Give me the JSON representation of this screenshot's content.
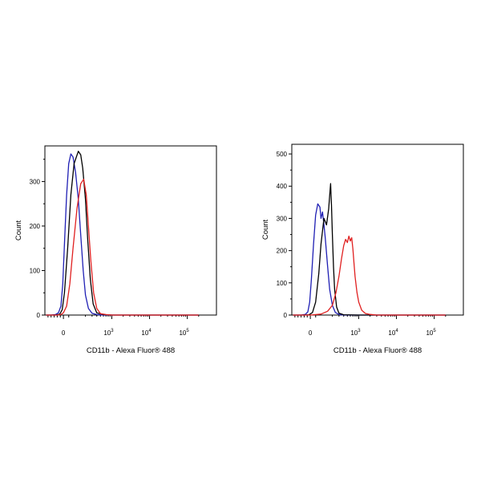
{
  "chart_data": [
    {
      "type": "line",
      "title": "",
      "xlabel": "CD11b - Alexa Fluor® 488",
      "ylabel": "Count",
      "x_scale": "biexponential",
      "xlim": [
        -300,
        200000
      ],
      "ylim": [
        0,
        380
      ],
      "x_tick_labels": [
        {
          "value": 0,
          "label": "0",
          "sup": ""
        },
        {
          "value": 1000,
          "label": "10",
          "sup": "3"
        },
        {
          "value": 10000,
          "label": "10",
          "sup": "4"
        },
        {
          "value": 100000,
          "label": "10",
          "sup": "5"
        }
      ],
      "y_ticks": [
        0,
        100,
        200,
        300
      ],
      "grid": false,
      "series": [
        {
          "color": "#1f1fb4",
          "x": [
            -280,
            -200,
            -130,
            -80,
            -40,
            -10,
            10,
            30,
            50,
            70,
            90,
            110,
            130,
            150,
            175,
            200,
            240,
            300,
            400,
            600,
            1000,
            5000,
            50000,
            200000
          ],
          "y": [
            0,
            0,
            1,
            5,
            20,
            70,
            160,
            270,
            340,
            362,
            355,
            320,
            260,
            180,
            100,
            45,
            15,
            4,
            1,
            0,
            0,
            0,
            0,
            0
          ]
        },
        {
          "color": "#000000",
          "x": [
            -280,
            -200,
            -120,
            -60,
            -20,
            10,
            40,
            70,
            100,
            130,
            150,
            170,
            200,
            230,
            270,
            320,
            400,
            600,
            1000,
            5000,
            50000,
            200000
          ],
          "y": [
            0,
            0,
            0,
            2,
            12,
            50,
            150,
            270,
            340,
            368,
            360,
            330,
            260,
            170,
            80,
            25,
            5,
            1,
            0,
            0,
            0,
            0
          ]
        },
        {
          "color": "#e02020",
          "x": [
            -280,
            -100,
            -40,
            0,
            30,
            60,
            90,
            120,
            150,
            180,
            210,
            240,
            280,
            330,
            400,
            500,
            700,
            1000,
            5000,
            50000,
            200000
          ],
          "y": [
            0,
            0,
            1,
            5,
            20,
            70,
            150,
            240,
            295,
            305,
            270,
            200,
            120,
            50,
            15,
            3,
            1,
            0,
            0,
            0,
            0
          ]
        }
      ]
    },
    {
      "type": "line",
      "title": "",
      "xlabel": "CD11b - Alexa Fluor® 488",
      "ylabel": "Count",
      "x_scale": "biexponential",
      "xlim": [
        -300,
        200000
      ],
      "ylim": [
        0,
        530
      ],
      "x_tick_labels": [
        {
          "value": 0,
          "label": "0",
          "sup": ""
        },
        {
          "value": 1000,
          "label": "10",
          "sup": "3"
        },
        {
          "value": 10000,
          "label": "10",
          "sup": "4"
        },
        {
          "value": 100000,
          "label": "10",
          "sup": "5"
        }
      ],
      "y_ticks": [
        0,
        100,
        200,
        300,
        400,
        500
      ],
      "grid": false,
      "series": [
        {
          "color": "#1f1fb4",
          "x": [
            -280,
            -150,
            -80,
            -40,
            -10,
            10,
            30,
            50,
            70,
            90,
            100,
            110,
            120,
            130,
            150,
            170,
            200,
            240,
            300,
            400,
            1000,
            10000,
            200000
          ],
          "y": [
            0,
            0,
            2,
            10,
            40,
            110,
            220,
            310,
            345,
            335,
            300,
            320,
            280,
            240,
            150,
            80,
            30,
            8,
            2,
            0,
            0,
            0,
            0
          ]
        },
        {
          "color": "#000000",
          "x": [
            -280,
            -100,
            -20,
            20,
            50,
            80,
            100,
            120,
            140,
            160,
            170,
            180,
            190,
            200,
            215,
            230,
            260,
            300,
            400,
            1000,
            10000,
            200000
          ],
          "y": [
            0,
            0,
            1,
            8,
            40,
            130,
            220,
            300,
            280,
            330,
            370,
            408,
            340,
            250,
            150,
            80,
            25,
            6,
            1,
            0,
            0,
            0
          ]
        },
        {
          "color": "#e02020",
          "x": [
            -280,
            0,
            100,
            150,
            200,
            250,
            300,
            350,
            400,
            450,
            500,
            550,
            600,
            650,
            700,
            750,
            800,
            900,
            1000,
            1200,
            1500,
            2000,
            3000,
            10000,
            200000
          ],
          "y": [
            0,
            0,
            3,
            12,
            30,
            70,
            120,
            175,
            215,
            235,
            225,
            245,
            230,
            240,
            205,
            160,
            120,
            70,
            40,
            15,
            5,
            2,
            0,
            0,
            0
          ]
        }
      ]
    }
  ]
}
